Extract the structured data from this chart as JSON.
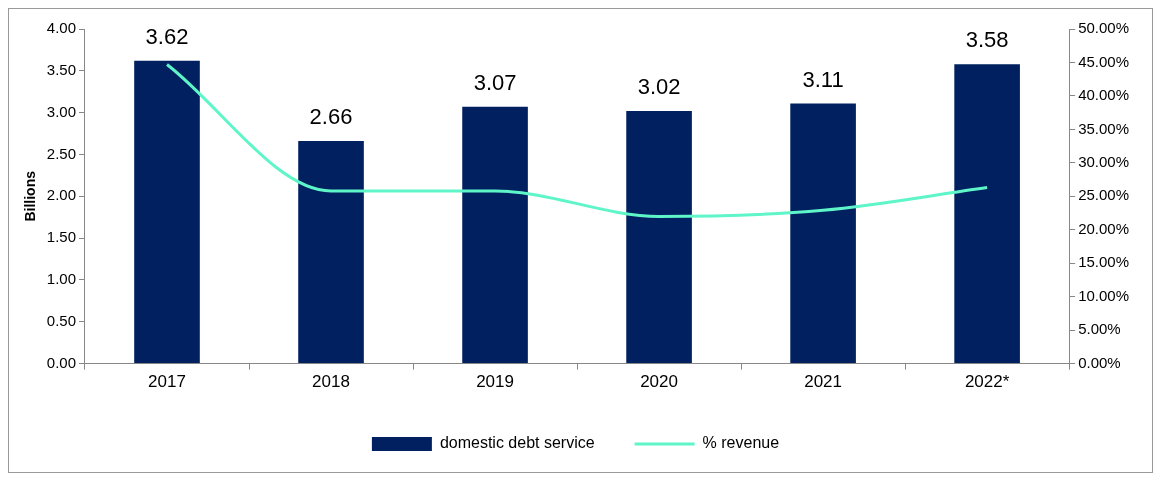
{
  "chart_data": {
    "type": "bar",
    "ylabel": "Billions",
    "categories": [
      "2017",
      "2018",
      "2019",
      "2020",
      "2021",
      "2022*"
    ],
    "series": [
      {
        "name": "domestic debt service",
        "color": "#002060",
        "values": [
          3.62,
          2.66,
          3.07,
          3.02,
          3.11,
          3.58
        ],
        "value_labels": [
          "3.62",
          "2.66",
          "3.07",
          "3.02",
          "3.11",
          "3.58"
        ]
      },
      {
        "name": "% revenue",
        "type": "line",
        "axis": "y2",
        "color": "#5ef5c8",
        "values": [
          44.7,
          25.8,
          25.8,
          22.0,
          22.9,
          26.3
        ]
      }
    ],
    "ylim": [
      0,
      4
    ],
    "yticks": [
      {
        "value": 0,
        "label": "0.00"
      },
      {
        "value": 0.5,
        "label": "0.50"
      },
      {
        "value": 1,
        "label": "1.00"
      },
      {
        "value": 1.5,
        "label": "1.50"
      },
      {
        "value": 2,
        "label": "2.00"
      },
      {
        "value": 2.5,
        "label": "2.50"
      },
      {
        "value": 3,
        "label": "3.00"
      },
      {
        "value": 3.5,
        "label": "3.50"
      },
      {
        "value": 4,
        "label": "4.00"
      }
    ],
    "y2lim": [
      0,
      50
    ],
    "y2ticks": [
      {
        "value": 0,
        "label": "0.00%"
      },
      {
        "value": 5,
        "label": "5.00%"
      },
      {
        "value": 10,
        "label": "10.00%"
      },
      {
        "value": 15,
        "label": "15.00%"
      },
      {
        "value": 20,
        "label": "20.00%"
      },
      {
        "value": 25,
        "label": "25.00%"
      },
      {
        "value": 30,
        "label": "30.00%"
      },
      {
        "value": 35,
        "label": "35.00%"
      },
      {
        "value": 40,
        "label": "40.00%"
      },
      {
        "value": 45,
        "label": "45.00%"
      },
      {
        "value": 50,
        "label": "50.00%"
      }
    ],
    "legend": "bottom",
    "grid": false,
    "marker": "none"
  }
}
